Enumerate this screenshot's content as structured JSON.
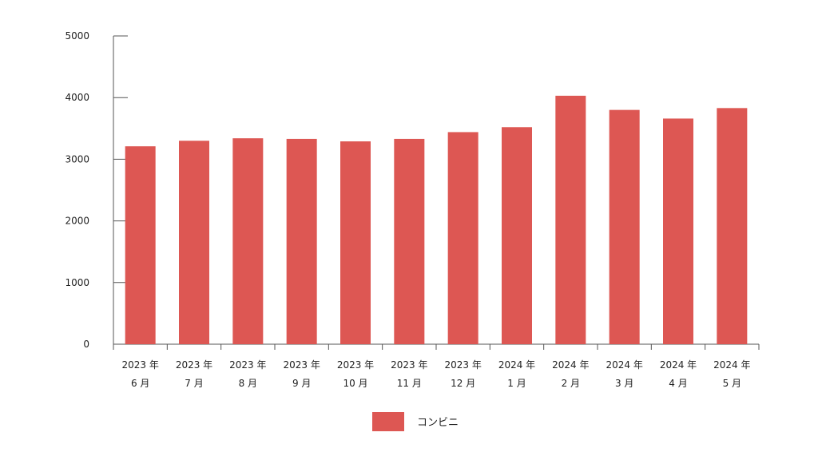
{
  "chart_data": {
    "type": "bar",
    "categories": [
      [
        "2023 年",
        "6 月"
      ],
      [
        "2023 年",
        "7 月"
      ],
      [
        "2023 年",
        "8 月"
      ],
      [
        "2023 年",
        "9 月"
      ],
      [
        "2023 年",
        "10 月"
      ],
      [
        "2023 年",
        "11 月"
      ],
      [
        "2023 年",
        "12 月"
      ],
      [
        "2024 年",
        "1 月"
      ],
      [
        "2024 年",
        "2 月"
      ],
      [
        "2024 年",
        "3 月"
      ],
      [
        "2024 年",
        "4 月"
      ],
      [
        "2024 年",
        "5 月"
      ]
    ],
    "series": [
      {
        "name": "コンビニ",
        "color": "#dd5753",
        "values": [
          3210,
          3300,
          3340,
          3330,
          3290,
          3330,
          3440,
          3520,
          4030,
          3800,
          3660,
          3830
        ]
      }
    ],
    "ylim": [
      0,
      5000
    ],
    "yticks": [
      0,
      1000,
      2000,
      3000,
      4000,
      5000
    ],
    "grid": false,
    "legend_position": "bottom-center",
    "axis_color": "#555555"
  }
}
